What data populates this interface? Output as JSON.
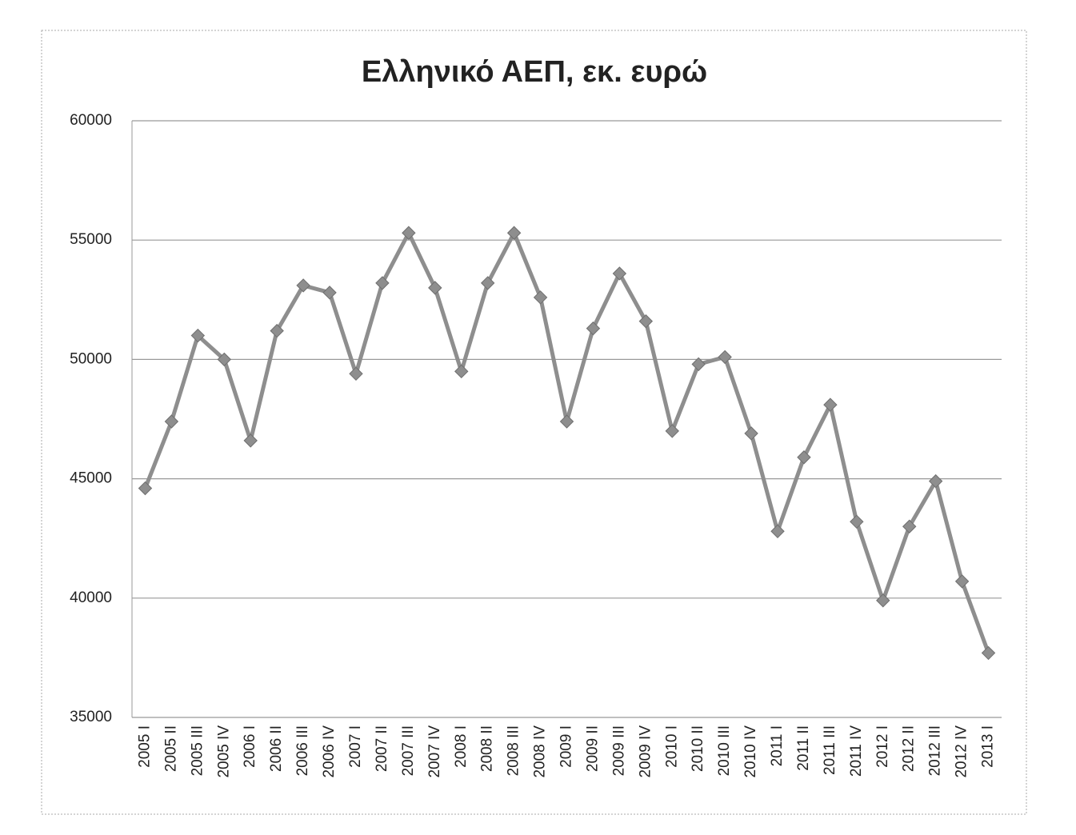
{
  "chart_data": {
    "type": "line",
    "title": "Ελληνικό ΑΕΠ, εκ. ευρώ",
    "categories": [
      "2005 I",
      "2005 II",
      "2005 III",
      "2005 IV",
      "2006 I",
      "2006 II",
      "2006 III",
      "2006 IV",
      "2007 I",
      "2007 II",
      "2007 III",
      "2007 IV",
      "2008 I",
      "2008 II",
      "2008 III",
      "2008 IV",
      "2009 I",
      "2009 II",
      "2009 III",
      "2009 IV",
      "2010 I",
      "2010 II",
      "2010 III",
      "2010 IV",
      "2011 I",
      "2011 II",
      "2011 III",
      "2011 IV",
      "2012 I",
      "2012 II",
      "2012 III",
      "2012 IV",
      "2013 I"
    ],
    "values": [
      44600,
      47400,
      51000,
      50000,
      46600,
      51200,
      53100,
      52800,
      49400,
      53200,
      55300,
      53000,
      49500,
      53200,
      55300,
      52600,
      47400,
      51300,
      53600,
      51600,
      47000,
      49800,
      50100,
      46900,
      42800,
      45900,
      48100,
      43200,
      39900,
      43000,
      44900,
      40700,
      37700
    ],
    "color": "#8e8e8e",
    "ylim": [
      35000,
      60000
    ],
    "yticks": [
      35000,
      40000,
      45000,
      50000,
      55000,
      60000
    ],
    "grid": true
  }
}
